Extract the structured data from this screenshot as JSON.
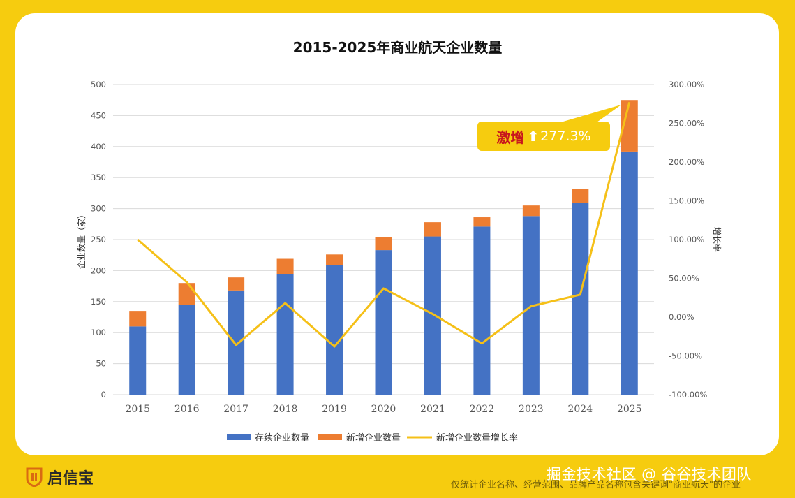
{
  "chart_data": {
    "type": "bar",
    "title": "2015-2025年商业航天企业数量",
    "categories": [
      "2015",
      "2016",
      "2017",
      "2018",
      "2019",
      "2020",
      "2021",
      "2022",
      "2023",
      "2024",
      "2025"
    ],
    "ylabel": "企业数量（家）",
    "y2label": "增长率",
    "ylim": [
      0,
      500
    ],
    "yticks": [
      "0",
      "50",
      "100",
      "150",
      "200",
      "250",
      "300",
      "350",
      "400",
      "450",
      "500"
    ],
    "y2lim": [
      -100,
      300
    ],
    "y2ticks": [
      "-100.00%",
      "-50.00%",
      "0.00%",
      "50.00%",
      "100.00%",
      "150.00%",
      "200.00%",
      "250.00%",
      "300.00%"
    ],
    "stacked": true,
    "series": [
      {
        "name": "存续企业数量",
        "type": "bar",
        "color": "#4472c4",
        "values": [
          110,
          145,
          168,
          194,
          209,
          233,
          255,
          271,
          288,
          309,
          392
        ]
      },
      {
        "name": "新增企业数量",
        "type": "bar",
        "color": "#ed7d31",
        "values": [
          25,
          35,
          21,
          25,
          17,
          21,
          23,
          15,
          17,
          23,
          83
        ]
      },
      {
        "name": "新增企业数量增长率",
        "type": "line",
        "axis": "right",
        "color": "#f5c018",
        "values": [
          100,
          45,
          -36,
          18,
          -38,
          37,
          4,
          -34,
          14,
          29,
          277.3
        ]
      }
    ],
    "grid": true,
    "legend_position": "bottom"
  },
  "callout": {
    "word": "激增",
    "arrow": "⬆",
    "value": "277.3%"
  },
  "logo": {
    "text": "启信宝"
  },
  "footnote": "仅统计企业名称、经营范围、品牌产品名称包含关键词\"商业航天\"的企业",
  "watermark": "掘金技术社区 @ 谷谷技术团队"
}
